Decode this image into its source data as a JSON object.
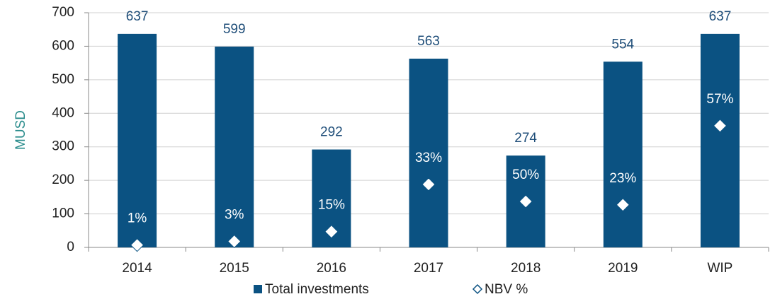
{
  "chart_data": {
    "type": "bar",
    "y_label": "MUSD",
    "categories": [
      "2014",
      "2015",
      "2016",
      "2017",
      "2018",
      "2019",
      "WIP"
    ],
    "series": [
      {
        "name": "Total investments",
        "color": "#0b5282",
        "values": [
          637,
          599,
          292,
          563,
          274,
          554,
          637
        ]
      },
      {
        "name": "NBV %",
        "type": "scatter",
        "marker": "diamond",
        "color": "#ffffff",
        "values": [
          7,
          18,
          47,
          188,
          137,
          127,
          363
        ],
        "data_labels": [
          "1%",
          "3%",
          "15%",
          "33%",
          "50%",
          "23%",
          "57%"
        ]
      }
    ],
    "ylim": [
      0,
      700
    ],
    "yticks": [
      0,
      100,
      200,
      300,
      400,
      500,
      600,
      700
    ],
    "grid": true,
    "legend": "bottom"
  }
}
